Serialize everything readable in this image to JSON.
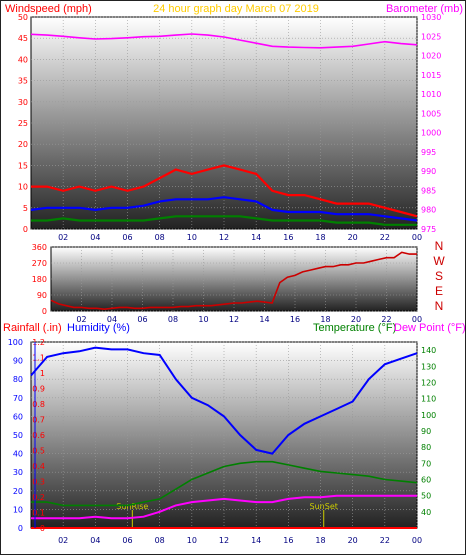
{
  "colors": {
    "wind": "#ff0000",
    "gust": "#ff0000",
    "wind_avg": "#0000ff",
    "wind_low": "#008000",
    "barometer": "#ff00ff",
    "title": "#ffcc00",
    "direction": "#cc0000",
    "humidity": "#0000ff",
    "temperature": "#008000",
    "dewpoint": "#ff00ff",
    "rainfall": "#ff0000",
    "sun": "#cccc00",
    "axis_text_left": "#ff0000",
    "axis_text_right": "#ff00ff",
    "axis_text_bottom": "#000080"
  },
  "chart_data": [
    {
      "type": "line",
      "title": "24 hour graph day   March 07 2019",
      "ylabel": "Windspeed (mph)",
      "ylabel_right": "Barometer (mb)",
      "ylim": [
        0,
        50
      ],
      "ylim_right": [
        975,
        1030
      ],
      "yticks": [
        "0",
        "5",
        "10",
        "15",
        "20",
        "25",
        "30",
        "35",
        "40",
        "45",
        "50"
      ],
      "yticks_right": [
        "975",
        "980",
        "985",
        "990",
        "995",
        "1000",
        "1005",
        "1010",
        "1015",
        "1020",
        "1025",
        "1030"
      ],
      "x_ticks": [
        "02",
        "04",
        "06",
        "08",
        "10",
        "12",
        "14",
        "16",
        "18",
        "20",
        "22",
        "00"
      ],
      "xlim": [
        0,
        24
      ],
      "grid": true,
      "series": [
        {
          "key": "gust",
          "x": [
            0,
            1,
            2,
            3,
            4,
            5,
            6,
            7,
            8,
            9,
            10,
            11,
            12,
            13,
            14,
            15,
            16,
            17,
            18,
            19,
            20,
            21,
            22,
            23,
            24
          ],
          "values": [
            10,
            10,
            9,
            10,
            9,
            10,
            9,
            10,
            12,
            14,
            13,
            14,
            15,
            14,
            13,
            9,
            8,
            8,
            7,
            6,
            6,
            6,
            5,
            4,
            3
          ]
        },
        {
          "key": "wind_avg",
          "x": [
            0,
            1,
            2,
            3,
            4,
            5,
            6,
            7,
            8,
            9,
            10,
            11,
            12,
            13,
            14,
            15,
            16,
            17,
            18,
            19,
            20,
            21,
            22,
            23,
            24
          ],
          "values": [
            4.5,
            5,
            5,
            5,
            4.5,
            5,
            5,
            5.5,
            6.5,
            7,
            7,
            7,
            7.5,
            7,
            6.5,
            4.5,
            4,
            4,
            4,
            3.5,
            3.5,
            3.5,
            3,
            2.5,
            2
          ]
        },
        {
          "key": "wind_low",
          "x": [
            0,
            1,
            2,
            3,
            4,
            5,
            6,
            7,
            8,
            9,
            10,
            11,
            12,
            13,
            14,
            15,
            16,
            17,
            18,
            19,
            20,
            21,
            22,
            23,
            24
          ],
          "values": [
            2,
            2,
            2.5,
            2,
            2,
            2,
            2,
            2,
            2.5,
            3,
            3,
            3,
            3,
            3,
            2.5,
            2,
            2,
            2,
            2,
            1.5,
            1.5,
            1.5,
            1,
            1,
            1
          ]
        },
        {
          "key": "barometer",
          "x": [
            0,
            1,
            2,
            3,
            4,
            5,
            6,
            7,
            8,
            9,
            10,
            11,
            12,
            13,
            14,
            15,
            16,
            17,
            18,
            19,
            20,
            21,
            22,
            23,
            24
          ],
          "values": [
            1025.5,
            1025.3,
            1025,
            1024.6,
            1024.3,
            1024.4,
            1024.6,
            1024.9,
            1025,
            1025.3,
            1025.6,
            1025.3,
            1024.8,
            1024,
            1023.2,
            1022.4,
            1022.2,
            1022.1,
            1022,
            1022.2,
            1022.4,
            1023,
            1023.6,
            1023.1,
            1022.8
          ]
        }
      ]
    },
    {
      "type": "line",
      "ylabel_right": "N W S E N",
      "ylim": [
        0,
        360
      ],
      "yticks": [
        "0",
        "90",
        "180",
        "270",
        "360"
      ],
      "dir_labels": [
        "N",
        "W",
        "S",
        "E",
        "N"
      ],
      "x_ticks": [
        "02",
        "04",
        "06",
        "08",
        "10",
        "12",
        "14",
        "16",
        "18",
        "20",
        "22",
        "00"
      ],
      "xlim": [
        0,
        24
      ],
      "grid": true,
      "series": [
        {
          "key": "direction",
          "x": [
            0,
            0.5,
            1,
            1.5,
            2,
            2.5,
            3,
            3.5,
            4,
            4.5,
            5,
            5.5,
            6,
            6.5,
            7,
            7.5,
            8,
            8.5,
            9,
            9.5,
            10,
            10.5,
            11,
            11.5,
            12,
            12.5,
            13,
            13.5,
            14,
            14.5,
            15,
            15.5,
            16,
            16.5,
            17,
            17.5,
            18,
            18.5,
            19,
            19.5,
            20,
            20.5,
            21,
            21.5,
            22,
            22.5,
            23,
            23.5,
            24
          ],
          "values": [
            60,
            40,
            30,
            20,
            20,
            15,
            15,
            10,
            15,
            20,
            20,
            15,
            15,
            20,
            20,
            20,
            20,
            25,
            25,
            30,
            30,
            30,
            35,
            40,
            45,
            45,
            50,
            55,
            50,
            45,
            160,
            190,
            200,
            220,
            230,
            240,
            250,
            250,
            260,
            260,
            270,
            270,
            280,
            290,
            300,
            300,
            330,
            320,
            320
          ]
        }
      ]
    },
    {
      "type": "line",
      "ylabel": "Rainfall (.in)",
      "ylabel_2": "Humidity (%)",
      "ylabel_right": "Temperature (°F)",
      "ylabel_right_2": "Dew Point (°F)",
      "ylim_rain": [
        0,
        1.2
      ],
      "ylim_humidity": [
        0,
        100
      ],
      "ylim_right": [
        30,
        145
      ],
      "yticks_rain": [
        "0",
        "0.1",
        "0.2",
        "0.3",
        "0.4",
        "0.5",
        "0.6",
        "0.7",
        "0.8",
        "0.9",
        "1",
        "1.1",
        "1.2"
      ],
      "yticks_humidity": [
        "0",
        "10",
        "20",
        "30",
        "40",
        "50",
        "60",
        "70",
        "80",
        "90",
        "100"
      ],
      "yticks_right": [
        "40",
        "50",
        "60",
        "70",
        "80",
        "90",
        "100",
        "110",
        "120",
        "130",
        "140"
      ],
      "x_ticks": [
        "02",
        "04",
        "06",
        "08",
        "10",
        "12",
        "14",
        "16",
        "18",
        "20",
        "22",
        "00"
      ],
      "xlim": [
        0,
        24
      ],
      "grid": true,
      "annotations": [
        {
          "text": "SunRise",
          "x": 6.3
        },
        {
          "text": "SunSet",
          "x": 18.2
        }
      ],
      "series": [
        {
          "key": "humidity",
          "x": [
            0,
            1,
            2,
            3,
            4,
            5,
            6,
            7,
            8,
            9,
            10,
            11,
            12,
            13,
            14,
            15,
            16,
            17,
            18,
            19,
            20,
            21,
            22,
            23,
            24
          ],
          "values": [
            82,
            92,
            94,
            95,
            97,
            96,
            96,
            94,
            93,
            80,
            70,
            66,
            60,
            50,
            42,
            40,
            50,
            56,
            60,
            64,
            68,
            80,
            88,
            91,
            94
          ]
        },
        {
          "key": "temperature",
          "x": [
            0,
            1,
            2,
            3,
            4,
            5,
            6,
            7,
            8,
            9,
            10,
            11,
            12,
            13,
            14,
            15,
            16,
            17,
            18,
            19,
            20,
            21,
            22,
            23,
            24
          ],
          "values": [
            46,
            46,
            44,
            44,
            44,
            44,
            44,
            46,
            48,
            54,
            60,
            64,
            68,
            70,
            71,
            71,
            69,
            67,
            65,
            64,
            63,
            62,
            60,
            59,
            58
          ]
        },
        {
          "key": "dewpoint",
          "x": [
            0,
            1,
            2,
            3,
            4,
            5,
            6,
            7,
            8,
            9,
            10,
            11,
            12,
            13,
            14,
            15,
            16,
            17,
            18,
            19,
            20,
            21,
            22,
            23,
            24
          ],
          "values": [
            36,
            36,
            36,
            36,
            37,
            36,
            36,
            37,
            40,
            44,
            46,
            47,
            48,
            47,
            46,
            46,
            48,
            49,
            49,
            50,
            50,
            50,
            50,
            50,
            50
          ]
        },
        {
          "key": "rainfall",
          "x": [
            0,
            24
          ],
          "values": [
            0,
            0
          ]
        }
      ]
    }
  ]
}
